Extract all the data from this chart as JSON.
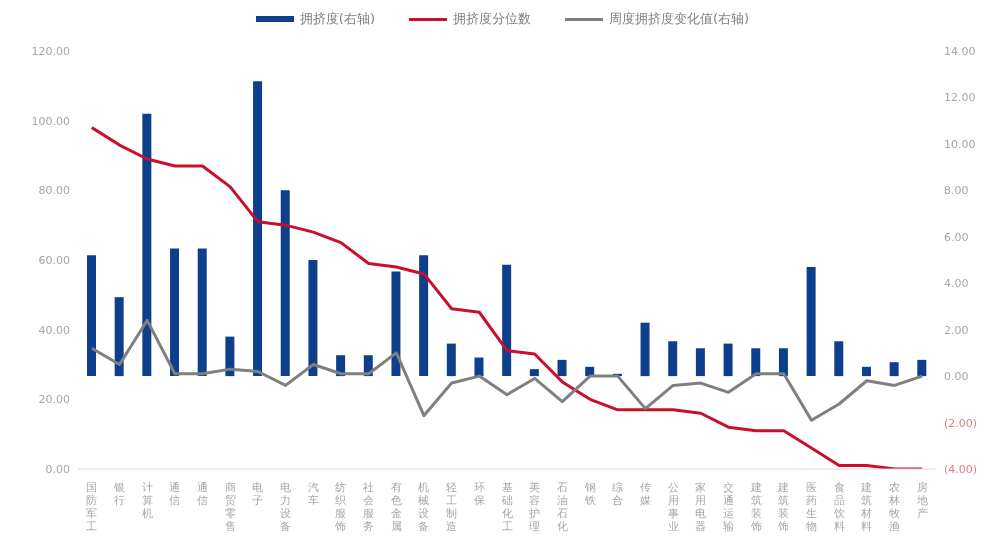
{
  "chart_data": {
    "type": "bar",
    "categories": [
      "国防军工",
      "银行",
      "计算机",
      "通信",
      "通信",
      "商贸零售",
      "电子",
      "电力设备",
      "汽车",
      "纺织服饰",
      "社会服务",
      "有色金属",
      "机械设备",
      "轻工制造",
      "环保",
      "基础化工",
      "美容护理",
      "石油石化",
      "钢铁",
      "综合",
      "传媒",
      "公用事业",
      "家用电器",
      "交通运输",
      "建筑装饰",
      "建筑装饰",
      "医药生物",
      "食品饮料",
      "建筑材料",
      "农林牧渔",
      "房地产"
    ],
    "series": [
      {
        "name": "拥挤度(右轴)",
        "axis": "y2",
        "color": "#0e3f8c",
        "values": [
          5.2,
          3.4,
          11.3,
          5.5,
          5.5,
          1.7,
          12.7,
          8.0,
          5.0,
          0.9,
          0.9,
          4.5,
          5.2,
          1.4,
          0.8,
          4.8,
          0.3,
          0.7,
          0.4,
          0.1,
          2.3,
          1.5,
          1.2,
          1.4,
          1.2,
          1.2,
          4.7,
          1.5,
          0.4,
          0.6,
          0.7
        ]
      },
      {
        "name": "拥挤度分位数",
        "type": "line",
        "color": "#c8102e",
        "values": [
          98,
          93,
          89,
          87,
          87,
          81,
          71,
          70,
          68,
          65,
          59,
          58,
          56,
          46,
          45,
          34,
          33,
          25,
          20,
          17,
          17,
          17,
          16,
          12,
          11,
          11,
          6,
          1,
          1,
          0,
          0
        ]
      },
      {
        "name": "周度拥挤度变化值(右轴)",
        "type": "line",
        "axis": "y2",
        "color": "#7f7f7f",
        "values": [
          1.2,
          0.5,
          2.4,
          0.1,
          0.1,
          0.3,
          0.2,
          -0.4,
          0.5,
          0.1,
          0.1,
          1.0,
          -1.7,
          -0.3,
          0.0,
          -0.8,
          -0.1,
          -1.1,
          0.0,
          0.0,
          -1.4,
          -0.4,
          -0.3,
          -0.7,
          0.1,
          0.1,
          -1.9,
          -1.2,
          -0.2,
          -0.4,
          0.0
        ]
      }
    ],
    "ylim": [
      0,
      120
    ],
    "yticks": [
      {
        "value": 0,
        "label": "0.00"
      },
      {
        "value": 20,
        "label": "20.00"
      },
      {
        "value": 40,
        "label": "40.00"
      },
      {
        "value": 60,
        "label": "60.00"
      },
      {
        "value": 80,
        "label": "80.00"
      },
      {
        "value": 100,
        "label": "100.00"
      },
      {
        "value": 120,
        "label": "120.00"
      }
    ],
    "y2lim": [
      -4,
      14
    ],
    "y2ticks": [
      {
        "value": -4,
        "label": "(4.00)"
      },
      {
        "value": -2,
        "label": "(2.00)"
      },
      {
        "value": 0,
        "label": "0.00"
      },
      {
        "value": 2,
        "label": "2.00"
      },
      {
        "value": 4,
        "label": "4.00"
      },
      {
        "value": 6,
        "label": "6.00"
      },
      {
        "value": 8,
        "label": "8.00"
      },
      {
        "value": 10,
        "label": "10.00"
      },
      {
        "value": 12,
        "label": "12.00"
      },
      {
        "value": 14,
        "label": "14.00"
      }
    ],
    "legend": "top",
    "marker": "none",
    "line_style": "solid"
  }
}
